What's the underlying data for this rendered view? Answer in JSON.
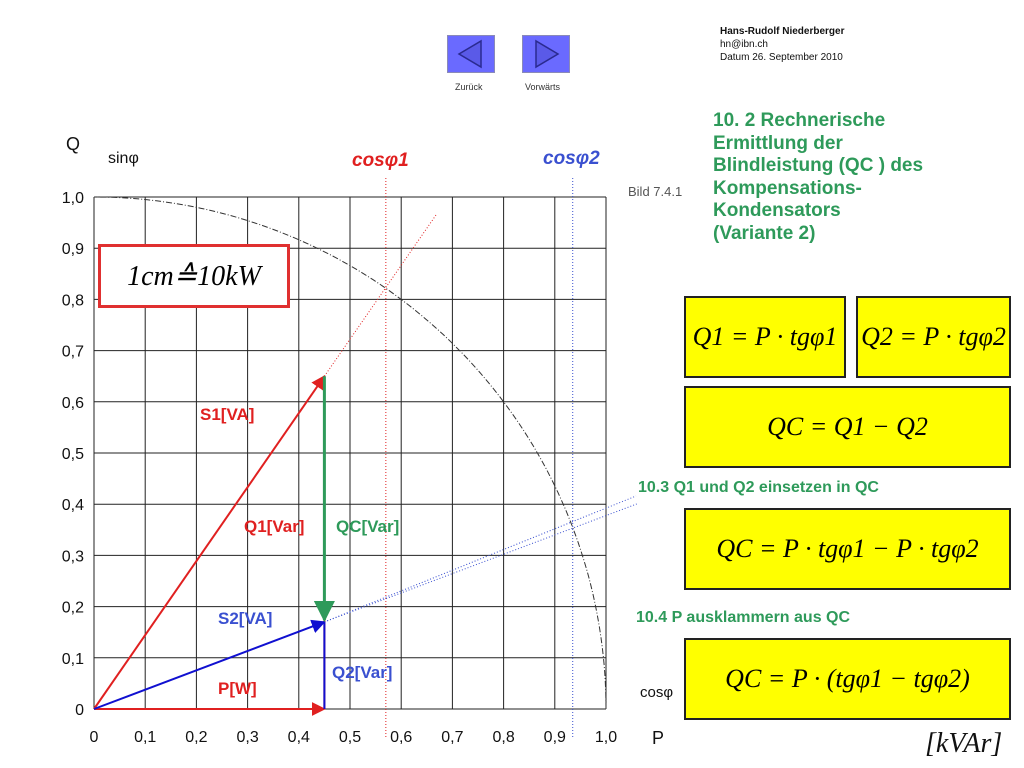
{
  "author": {
    "name": "Hans-Rudolf Niederberger",
    "email": "hn@ibn.ch",
    "date": "Datum 26. September 2010"
  },
  "nav": {
    "back_label": "Zurück",
    "forward_label": "Vorwärts"
  },
  "heading": [
    "10. 2 Rechnerische",
    "Ermittlung der",
    "Blindleistung (QC ) des",
    "Kompensations-",
    "Kondensators",
    "(Variante 2)"
  ],
  "bild_label": "Bild 7.4.1",
  "scale_note": "1cm≙10kW",
  "formulas": {
    "q1": "Q1 = P · tgφ1",
    "q2": "Q2 = P · tgφ2",
    "qc": "QC = Q1 − Q2",
    "qc_insert": "QC = P · tgφ1 − P · tgφ2",
    "qc_factored": "QC = P · (tgφ1 − tgφ2)"
  },
  "steps": {
    "insert": "10.3 Q1 und Q2 einsetzen in QC",
    "factor": "10.4 P ausklammern aus QC"
  },
  "unit": "[kVAr]",
  "diagram": {
    "y_axis_title": "Q",
    "y_axis_sub": "sinφ",
    "x_axis_title": "P",
    "x_axis_sub": "cosφ",
    "y_ticks": [
      "0",
      "0,1",
      "0,2",
      "0,3",
      "0,4",
      "0,5",
      "0,6",
      "0,7",
      "0,8",
      "0,9",
      "1,0"
    ],
    "x_ticks": [
      "0",
      "0,1",
      "0,2",
      "0,3",
      "0,4",
      "0,5",
      "0,6",
      "0,7",
      "0,8",
      "0,9",
      "1,0"
    ],
    "cos1_label": "cosφ1",
    "cos2_label": "cosφ2",
    "s1_label": "S1[VA]",
    "q1_label": "Q1[Var]",
    "qc_label": "QC[Var]",
    "s2_label": "S2[VA]",
    "q2_label": "Q2[Var]",
    "p_label": "P[W]",
    "p_value": 0.45,
    "q1_value": 0.65,
    "q2_value": 0.17,
    "cos1_value": 0.57,
    "cos2_value": 0.935
  },
  "colors": {
    "green": "#2e9a5a",
    "red": "#e02020",
    "blue": "#1010d0",
    "yellow": "#ffff00"
  }
}
